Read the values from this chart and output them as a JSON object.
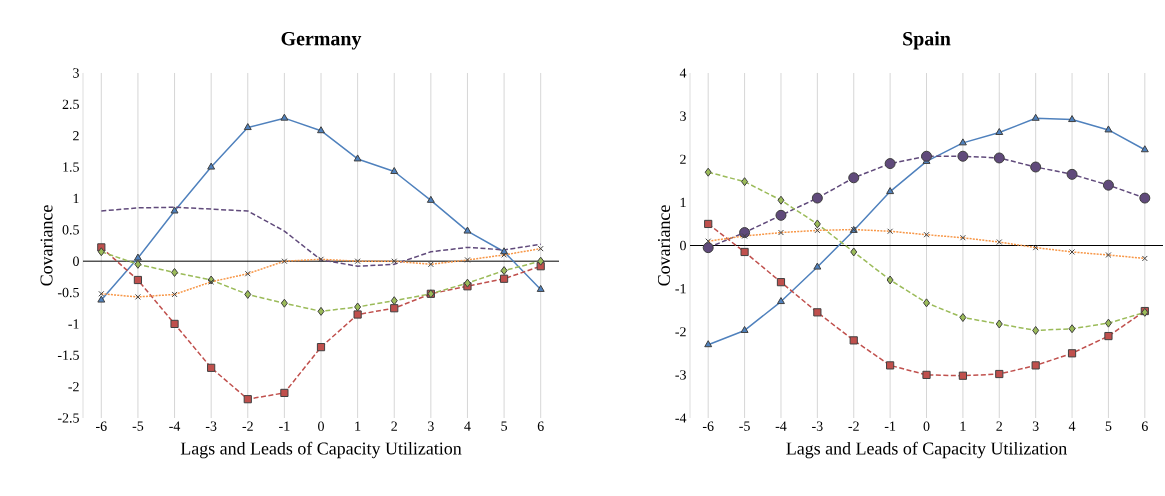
{
  "chart_data": [
    {
      "type": "line",
      "title": "Germany",
      "xlabel": "Lags and Leads of Capacity Utilization",
      "ylabel": "Covariance",
      "categories": [
        "-6",
        "-5",
        "-4",
        "-3",
        "-2",
        "-1",
        "0",
        "1",
        "2",
        "3",
        "4",
        "5",
        "6"
      ],
      "ylim": [
        -2.5,
        3
      ],
      "yticks": [
        -2.5,
        -2,
        -1.5,
        -1,
        -0.5,
        0,
        0.5,
        1,
        1.5,
        2,
        2.5,
        3
      ],
      "grid": "x",
      "series": [
        {
          "color": "#4f81bd",
          "marker": "triangle",
          "line_style": "solid",
          "values": [
            -0.62,
            0.05,
            0.8,
            1.5,
            2.13,
            2.28,
            2.08,
            1.63,
            1.43,
            0.97,
            0.48,
            0.15,
            -0.45
          ]
        },
        {
          "color": "#604a7b",
          "marker": "none",
          "line_style": "dashed",
          "values": [
            0.8,
            0.85,
            0.86,
            0.83,
            0.8,
            0.48,
            0.02,
            -0.08,
            -0.05,
            0.15,
            0.22,
            0.18,
            0.27
          ]
        },
        {
          "color": "#c0504d",
          "marker": "square",
          "line_style": "dashed",
          "values": [
            0.22,
            -0.3,
            -1.0,
            -1.7,
            -2.2,
            -2.1,
            -1.37,
            -0.85,
            -0.75,
            -0.52,
            -0.4,
            -0.28,
            -0.08
          ]
        },
        {
          "color": "#9bbb59",
          "marker": "diamond",
          "line_style": "dashed",
          "values": [
            0.15,
            -0.05,
            -0.18,
            -0.3,
            -0.53,
            -0.67,
            -0.8,
            -0.73,
            -0.63,
            -0.52,
            -0.35,
            -0.15,
            0.0
          ]
        },
        {
          "color": "#f79646",
          "marker": "cross",
          "line_style": "dotted",
          "values": [
            -0.52,
            -0.57,
            -0.53,
            -0.33,
            -0.2,
            0.0,
            0.03,
            0.0,
            0.0,
            -0.05,
            0.02,
            0.1,
            0.2
          ]
        }
      ]
    },
    {
      "type": "line",
      "title": "Spain",
      "xlabel": "Lags and Leads of Capacity Utilization",
      "ylabel": "Covariance",
      "categories": [
        "-6",
        "-5",
        "-4",
        "-3",
        "-2",
        "-1",
        "0",
        "1",
        "2",
        "3",
        "4",
        "5",
        "6"
      ],
      "ylim": [
        -4,
        4
      ],
      "yticks": [
        -4,
        -3,
        -2,
        -1,
        0,
        1,
        2,
        3,
        4
      ],
      "grid": "x",
      "series": [
        {
          "color": "#4f81bd",
          "marker": "triangle",
          "line_style": "solid",
          "values": [
            -2.3,
            -1.97,
            -1.3,
            -0.5,
            0.35,
            1.25,
            1.95,
            2.38,
            2.62,
            2.95,
            2.92,
            2.68,
            2.22
          ]
        },
        {
          "color": "#604a7b",
          "marker": "circle",
          "line_style": "dashed",
          "values": [
            -0.05,
            0.3,
            0.7,
            1.1,
            1.57,
            1.9,
            2.07,
            2.07,
            2.03,
            1.82,
            1.65,
            1.4,
            1.1
          ]
        },
        {
          "color": "#c0504d",
          "marker": "square",
          "line_style": "dashed",
          "values": [
            0.5,
            -0.15,
            -0.85,
            -1.55,
            -2.2,
            -2.78,
            -3.0,
            -3.02,
            -2.98,
            -2.78,
            -2.5,
            -2.1,
            -1.52
          ]
        },
        {
          "color": "#9bbb59",
          "marker": "diamond",
          "line_style": "dashed",
          "values": [
            1.7,
            1.48,
            1.05,
            0.5,
            -0.15,
            -0.8,
            -1.33,
            -1.67,
            -1.82,
            -1.97,
            -1.93,
            -1.8,
            -1.55
          ]
        },
        {
          "color": "#f79646",
          "marker": "cross",
          "line_style": "dotted",
          "values": [
            0.1,
            0.22,
            0.3,
            0.35,
            0.37,
            0.33,
            0.25,
            0.18,
            0.08,
            -0.05,
            -0.15,
            -0.22,
            -0.3
          ]
        }
      ]
    }
  ]
}
